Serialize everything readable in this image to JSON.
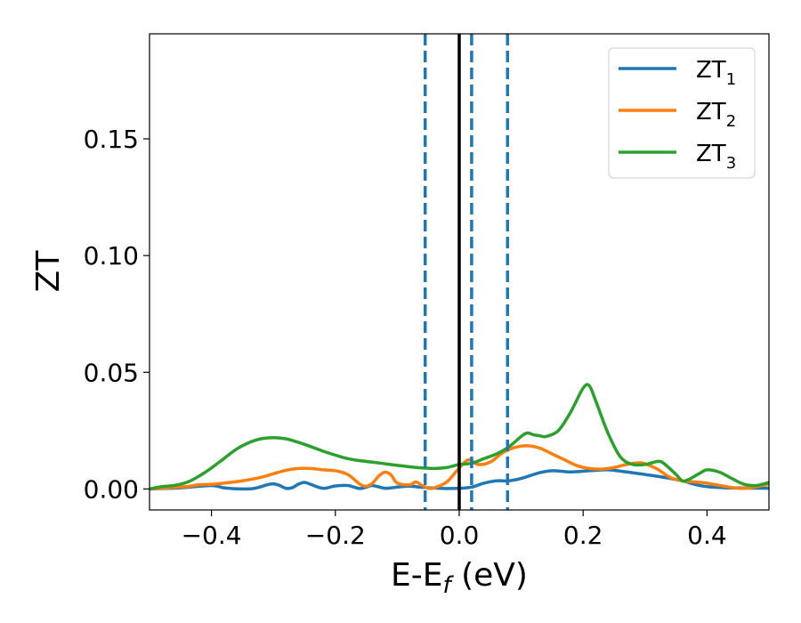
{
  "chart_data": {
    "type": "line",
    "xlabel": {
      "main": "E-E",
      "sub": "f",
      "unit": " (eV)"
    },
    "ylabel": "ZT",
    "xlim": [
      -0.5,
      0.5
    ],
    "ylim": [
      -0.009,
      0.195
    ],
    "xticks": [
      {
        "value": -0.4,
        "label": "−0.4"
      },
      {
        "value": -0.2,
        "label": "−0.2"
      },
      {
        "value": 0.0,
        "label": "0.0"
      },
      {
        "value": 0.2,
        "label": "0.2"
      },
      {
        "value": 0.4,
        "label": "0.4"
      }
    ],
    "yticks": [
      {
        "value": 0.0,
        "label": "0.00"
      },
      {
        "value": 0.05,
        "label": "0.05"
      },
      {
        "value": 0.1,
        "label": "0.10"
      },
      {
        "value": 0.15,
        "label": "0.15"
      }
    ],
    "grid": false,
    "legend_position": "top-right",
    "reference_lines": [
      {
        "x": 0.0,
        "style": "solid",
        "color": "#000000"
      },
      {
        "x": -0.055,
        "style": "dashed",
        "color": "#1f77b4"
      },
      {
        "x": 0.02,
        "style": "dashed",
        "color": "#1f77b4"
      },
      {
        "x": 0.078,
        "style": "dashed",
        "color": "#1f77b4"
      }
    ],
    "series": [
      {
        "name": "ZT",
        "name_sub": "1",
        "color": "#1f77b4",
        "points": [
          [
            -0.5,
            0
          ],
          [
            -0.45,
            0.0005
          ],
          [
            -0.4,
            0.0015
          ],
          [
            -0.38,
            0.0005
          ],
          [
            -0.35,
            0
          ],
          [
            -0.33,
            0.0003
          ],
          [
            -0.31,
            0.0018
          ],
          [
            -0.3,
            0.0022
          ],
          [
            -0.29,
            0.0015
          ],
          [
            -0.28,
            0.0003
          ],
          [
            -0.27,
            0.0005
          ],
          [
            -0.26,
            0.002
          ],
          [
            -0.25,
            0.0028
          ],
          [
            -0.24,
            0.002
          ],
          [
            -0.22,
            0.0003
          ],
          [
            -0.2,
            0.0013
          ],
          [
            -0.18,
            0.0015
          ],
          [
            -0.17,
            0.0008
          ],
          [
            -0.16,
            0.0002
          ],
          [
            -0.15,
            0.0008
          ],
          [
            -0.14,
            0.0015
          ],
          [
            -0.12,
            0.0003
          ],
          [
            -0.1,
            0.0008
          ],
          [
            -0.08,
            0.0012
          ],
          [
            -0.06,
            0.0007
          ],
          [
            -0.04,
            0.0004
          ],
          [
            -0.02,
            0.0002
          ],
          [
            0,
            0.0003
          ],
          [
            0.02,
            0.0008
          ],
          [
            0.04,
            0.0025
          ],
          [
            0.06,
            0.0035
          ],
          [
            0.08,
            0.0035
          ],
          [
            0.1,
            0.0045
          ],
          [
            0.13,
            0.007
          ],
          [
            0.15,
            0.0078
          ],
          [
            0.18,
            0.0073
          ],
          [
            0.21,
            0.0078
          ],
          [
            0.24,
            0.0082
          ],
          [
            0.27,
            0.0073
          ],
          [
            0.3,
            0.0062
          ],
          [
            0.33,
            0.005
          ],
          [
            0.36,
            0.0035
          ],
          [
            0.38,
            0.002
          ],
          [
            0.4,
            0.001
          ],
          [
            0.43,
            0.0005
          ],
          [
            0.46,
            0.0004
          ],
          [
            0.5,
            0.0003
          ]
        ]
      },
      {
        "name": "ZT",
        "name_sub": "2",
        "color": "#ff7f0e",
        "points": [
          [
            -0.5,
            0
          ],
          [
            -0.47,
            0.0005
          ],
          [
            -0.44,
            0.001
          ],
          [
            -0.42,
            0.0018
          ],
          [
            -0.4,
            0.002
          ],
          [
            -0.38,
            0.0025
          ],
          [
            -0.35,
            0.0035
          ],
          [
            -0.32,
            0.005
          ],
          [
            -0.3,
            0.0065
          ],
          [
            -0.28,
            0.008
          ],
          [
            -0.26,
            0.0088
          ],
          [
            -0.24,
            0.0088
          ],
          [
            -0.22,
            0.0082
          ],
          [
            -0.2,
            0.0078
          ],
          [
            -0.18,
            0.0062
          ],
          [
            -0.16,
            0.002
          ],
          [
            -0.15,
            0.0012
          ],
          [
            -0.14,
            0.0025
          ],
          [
            -0.13,
            0.0055
          ],
          [
            -0.12,
            0.0072
          ],
          [
            -0.11,
            0.006
          ],
          [
            -0.1,
            0.0025
          ],
          [
            -0.08,
            0.0018
          ],
          [
            -0.07,
            0.003
          ],
          [
            -0.06,
            0.0015
          ],
          [
            -0.05,
            0.0003
          ],
          [
            -0.04,
            0.0005
          ],
          [
            -0.02,
            0.003
          ],
          [
            0,
            0.009
          ],
          [
            0.015,
            0.0125
          ],
          [
            0.03,
            0.0105
          ],
          [
            0.05,
            0.0115
          ],
          [
            0.07,
            0.0155
          ],
          [
            0.09,
            0.0178
          ],
          [
            0.11,
            0.0185
          ],
          [
            0.13,
            0.0175
          ],
          [
            0.15,
            0.015
          ],
          [
            0.17,
            0.0125
          ],
          [
            0.19,
            0.01
          ],
          [
            0.21,
            0.0088
          ],
          [
            0.23,
            0.0085
          ],
          [
            0.25,
            0.0092
          ],
          [
            0.27,
            0.0105
          ],
          [
            0.29,
            0.0112
          ],
          [
            0.3,
            0.0108
          ],
          [
            0.32,
            0.0085
          ],
          [
            0.34,
            0.005
          ],
          [
            0.36,
            0.0035
          ],
          [
            0.38,
            0.003
          ],
          [
            0.4,
            0.0025
          ],
          [
            0.42,
            0.0015
          ],
          [
            0.45,
            0.0003
          ],
          [
            0.47,
            0.0005
          ],
          [
            0.49,
            0.0015
          ],
          [
            0.5,
            0.002
          ]
        ]
      },
      {
        "name": "ZT",
        "name_sub": "3",
        "color": "#2ca02c",
        "points": [
          [
            -0.5,
            0
          ],
          [
            -0.48,
            0.001
          ],
          [
            -0.46,
            0.0015
          ],
          [
            -0.44,
            0.0028
          ],
          [
            -0.42,
            0.0055
          ],
          [
            -0.4,
            0.009
          ],
          [
            -0.38,
            0.013
          ],
          [
            -0.36,
            0.017
          ],
          [
            -0.34,
            0.0198
          ],
          [
            -0.32,
            0.0215
          ],
          [
            -0.3,
            0.022
          ],
          [
            -0.28,
            0.0215
          ],
          [
            -0.26,
            0.02
          ],
          [
            -0.24,
            0.0182
          ],
          [
            -0.22,
            0.0162
          ],
          [
            -0.2,
            0.0145
          ],
          [
            -0.18,
            0.013
          ],
          [
            -0.16,
            0.0121
          ],
          [
            -0.14,
            0.0115
          ],
          [
            -0.12,
            0.0108
          ],
          [
            -0.1,
            0.0101
          ],
          [
            -0.08,
            0.0095
          ],
          [
            -0.06,
            0.009
          ],
          [
            -0.04,
            0.0088
          ],
          [
            -0.02,
            0.0092
          ],
          [
            0,
            0.0105
          ],
          [
            0.02,
            0.011
          ],
          [
            0.04,
            0.013
          ],
          [
            0.06,
            0.015
          ],
          [
            0.08,
            0.018
          ],
          [
            0.1,
            0.0225
          ],
          [
            0.11,
            0.024
          ],
          [
            0.12,
            0.0232
          ],
          [
            0.13,
            0.0228
          ],
          [
            0.14,
            0.0225
          ],
          [
            0.16,
            0.025
          ],
          [
            0.18,
            0.033
          ],
          [
            0.2,
            0.0432
          ],
          [
            0.21,
            0.0442
          ],
          [
            0.22,
            0.038
          ],
          [
            0.24,
            0.024
          ],
          [
            0.26,
            0.0138
          ],
          [
            0.28,
            0.0105
          ],
          [
            0.3,
            0.0105
          ],
          [
            0.32,
            0.0118
          ],
          [
            0.33,
            0.011
          ],
          [
            0.35,
            0.0062
          ],
          [
            0.36,
            0.0035
          ],
          [
            0.37,
            0.004
          ],
          [
            0.39,
            0.007
          ],
          [
            0.4,
            0.0082
          ],
          [
            0.42,
            0.0072
          ],
          [
            0.44,
            0.0045
          ],
          [
            0.46,
            0.002
          ],
          [
            0.48,
            0.0015
          ],
          [
            0.5,
            0.0028
          ]
        ]
      }
    ]
  }
}
